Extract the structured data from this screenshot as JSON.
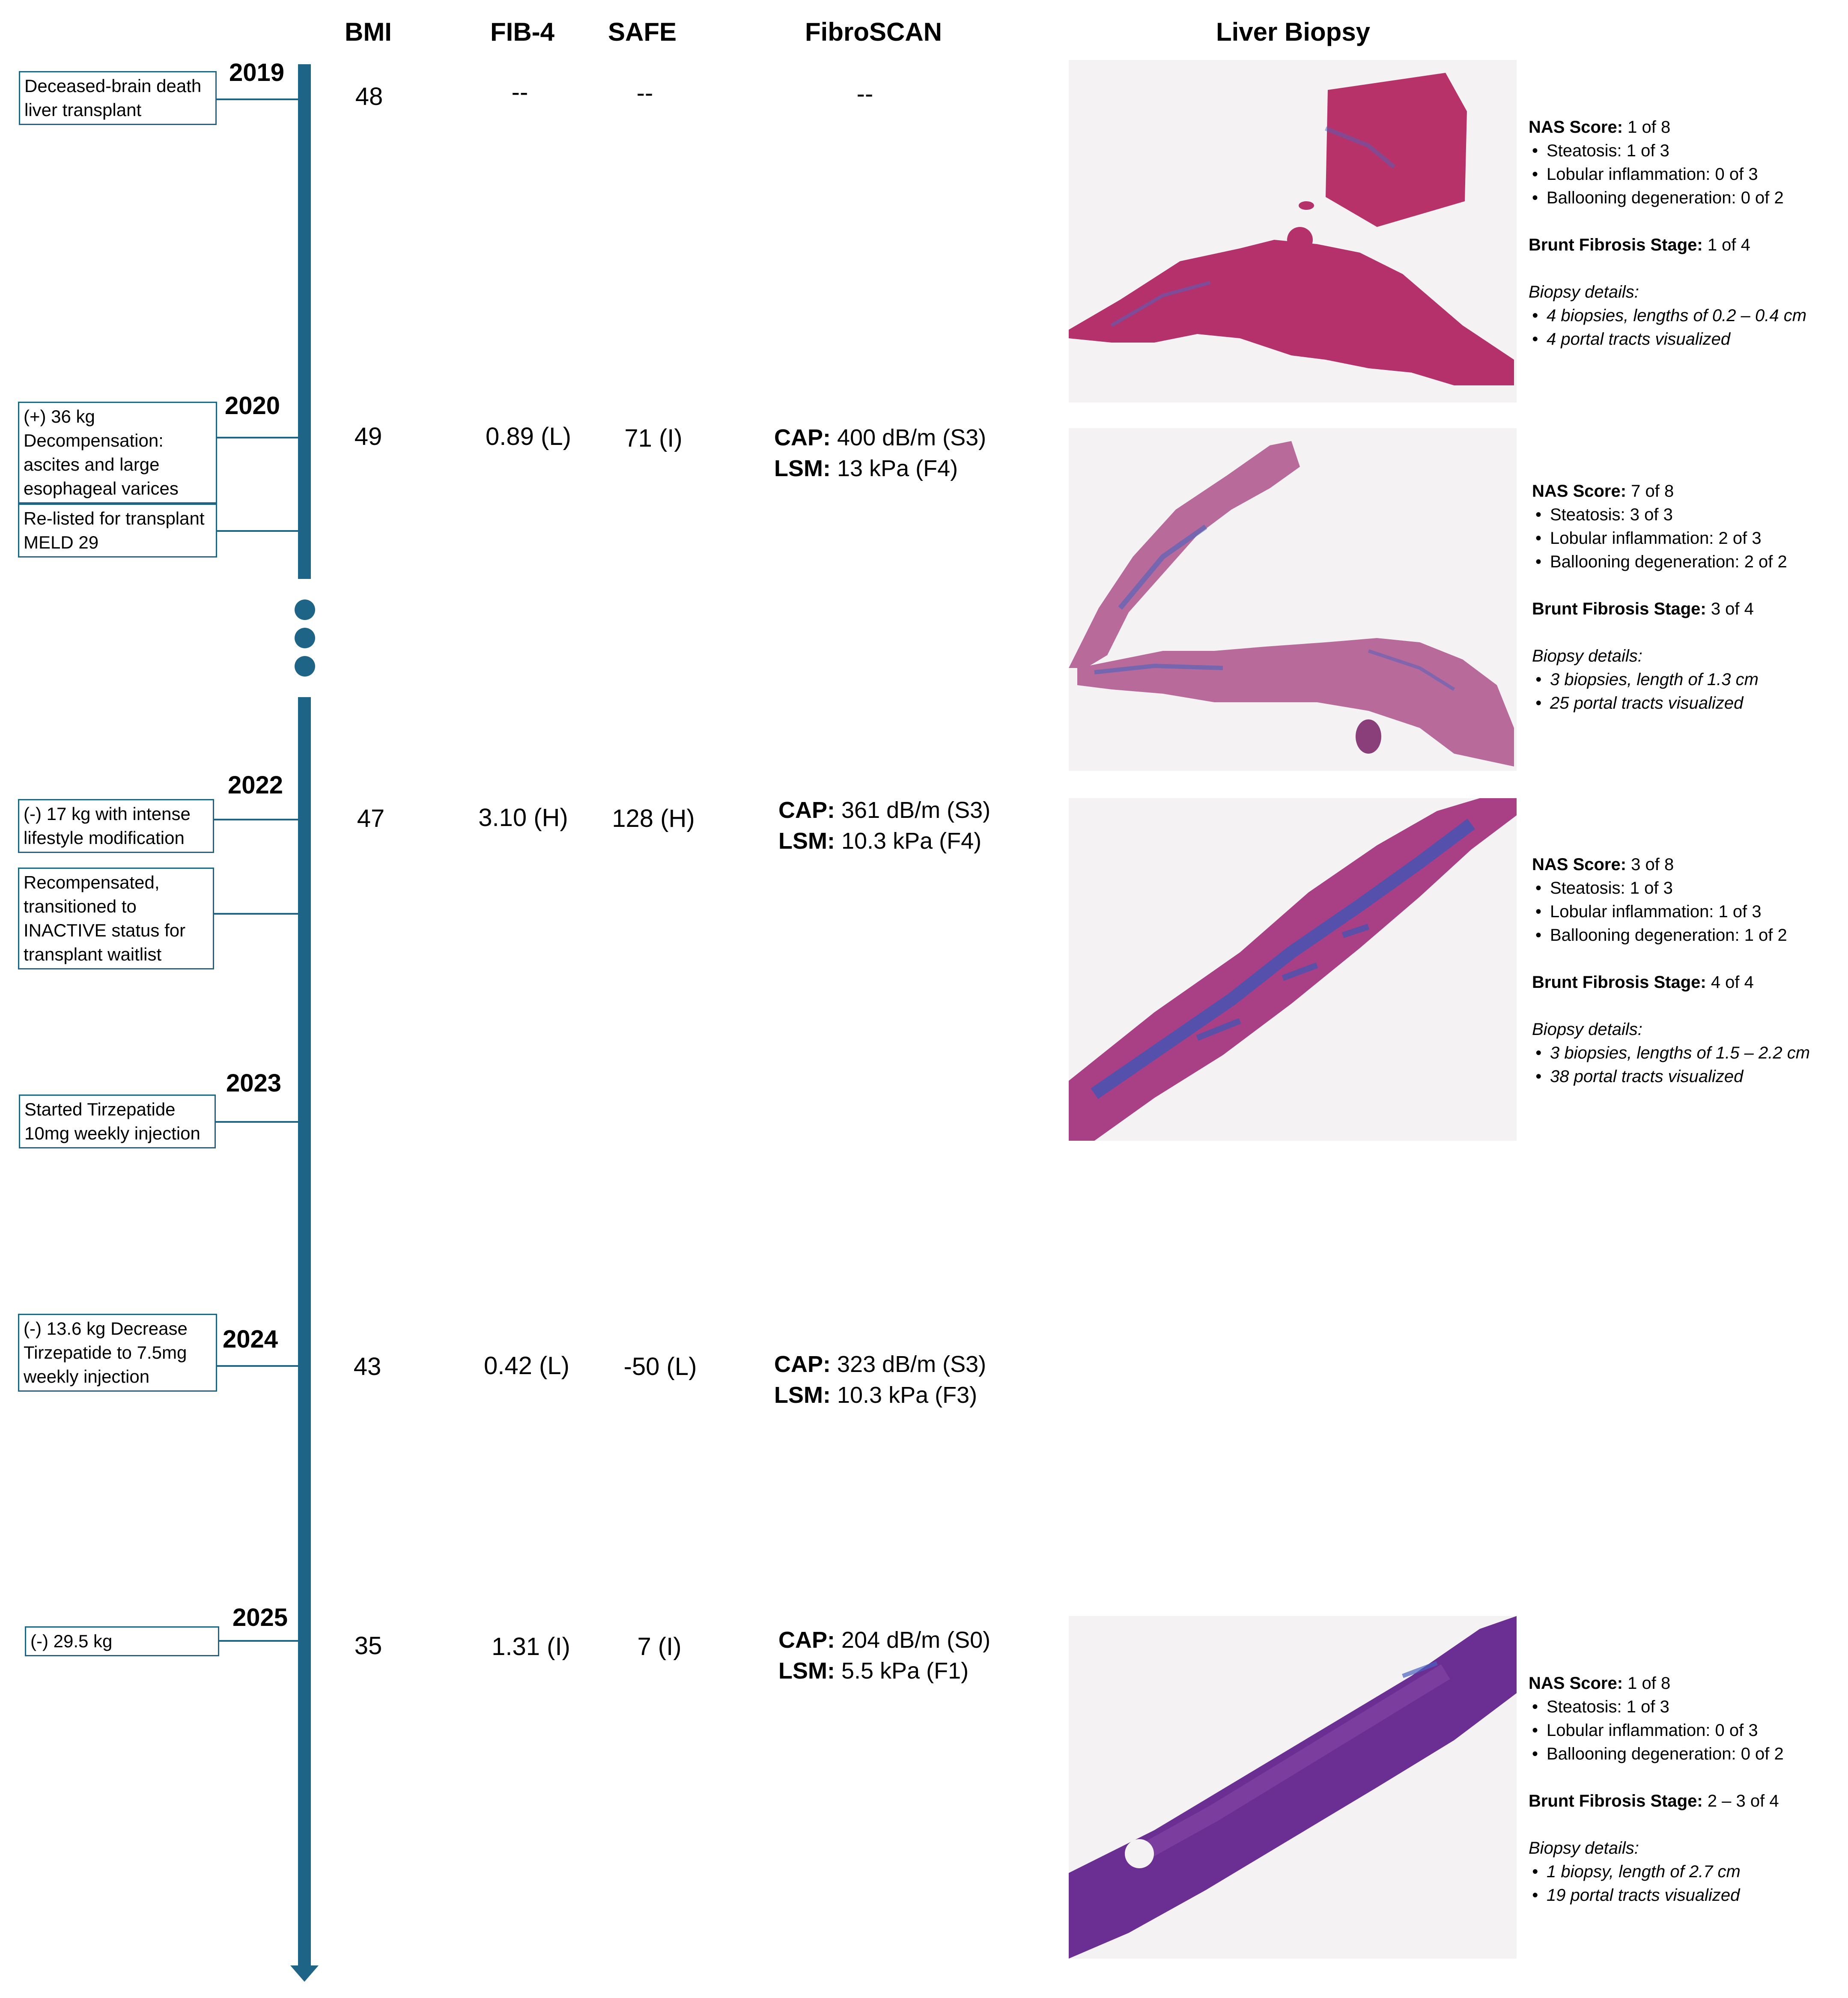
{
  "colors": {
    "timeline": "#1d6487",
    "he_stain": "#b8326a",
    "trichrome_blue": "#3a57b8",
    "purple_stain": "#6b2f93"
  },
  "headers": {
    "bmi": "BMI",
    "fib4": "FIB-4",
    "safe": "SAFE",
    "fibroscan": "FibroSCAN",
    "biopsy": "Liver Biopsy"
  },
  "years": [
    "2019",
    "2020",
    "2022",
    "2023",
    "2024",
    "2025"
  ],
  "events": [
    "Deceased-brain death liver transplant",
    "(+) 36 kg Decompensation: ascites and large esophageal varices",
    "Re-listed for transplant MELD 29",
    "(-) 17 kg with intense lifestyle modification",
    "Recompensated, transitioned to INACTIVE status for transplant waitlist",
    "Started Tirzepatide 10mg weekly injection",
    "(-) 13.6 kg Decrease Tirzepatide to 7.5mg weekly injection",
    "(-) 29.5 kg"
  ],
  "rows": [
    {
      "bmi": "48",
      "fib4": "--",
      "safe": "--",
      "fibroscan": "--"
    },
    {
      "bmi": "49",
      "fib4": "0.89 (L)",
      "safe": "71 (I)",
      "cap_label": "CAP:",
      "cap": "400 dB/m (S3)",
      "lsm_label": "LSM:",
      "lsm": "13 kPa (F4)"
    },
    {
      "bmi": "47",
      "fib4": "3.10 (H)",
      "safe": "128 (H)",
      "cap_label": "CAP:",
      "cap": "361 dB/m (S3)",
      "lsm_label": "LSM:",
      "lsm": "10.3 kPa (F4)"
    },
    {
      "bmi": "43",
      "fib4": "0.42 (L)",
      "safe": "-50 (L)",
      "cap_label": "CAP:",
      "cap": "323 dB/m (S3)",
      "lsm_label": "LSM:",
      "lsm": "10.3 kPa (F3)"
    },
    {
      "bmi": "35",
      "fib4": "1.31 (I)",
      "safe": "7 (I)",
      "cap_label": "CAP:",
      "cap": "204 dB/m (S0)",
      "lsm_label": "LSM:",
      "lsm": "5.5 kPa (F1)"
    }
  ],
  "biopsies": [
    {
      "nas_label": "NAS Score:",
      "nas": " 1 of 8",
      "steatosis": "Steatosis: 1 of 3",
      "lobular": "Lobular inflammation: 0 of 3",
      "ballooning": "Ballooning degeneration: 0 of 2",
      "brunt_label": "Brunt Fibrosis Stage:",
      "brunt": " 1 of 4",
      "details_label": "Biopsy details:",
      "detail1": "4 biopsies, lengths of 0.2 – 0.4 cm",
      "detail2": "4 portal tracts visualized"
    },
    {
      "nas_label": "NAS Score:",
      "nas": " 7 of 8",
      "steatosis": "Steatosis: 3 of 3",
      "lobular": "Lobular inflammation: 2 of 3",
      "ballooning": "Ballooning degeneration: 2 of 2",
      "brunt_label": "Brunt Fibrosis Stage:",
      "brunt": " 3 of 4",
      "details_label": "Biopsy details:",
      "detail1": "3 biopsies, length of 1.3 cm",
      "detail2": "25 portal tracts visualized"
    },
    {
      "nas_label": "NAS Score:",
      "nas": "  3 of 8",
      "steatosis": "Steatosis: 1 of 3",
      "lobular": "Lobular inflammation: 1 of 3",
      "ballooning": "Ballooning degeneration: 1 of 2",
      "brunt_label": "Brunt Fibrosis Stage:",
      "brunt": " 4 of 4",
      "details_label": "Biopsy details:",
      "detail1": "3 biopsies, lengths of 1.5 – 2.2 cm",
      "detail2": "38 portal tracts visualized"
    },
    {
      "nas_label": "NAS Score:",
      "nas": "  1 of 8",
      "steatosis": "Steatosis: 1 of 3",
      "lobular": "Lobular inflammation: 0 of 3",
      "ballooning": "Ballooning degeneration: 0 of 2",
      "brunt_label": "Brunt Fibrosis Stage:",
      "brunt": " 2 – 3 of 4",
      "details_label": "Biopsy details:",
      "detail1": "1 biopsy, length of 2.7 cm",
      "detail2": "19 portal tracts visualized"
    }
  ]
}
